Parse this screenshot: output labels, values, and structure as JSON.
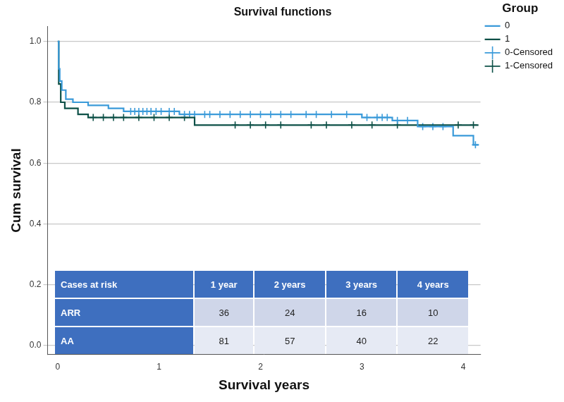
{
  "chart_data": {
    "type": "line",
    "title": "Survival functions",
    "x_label": "Survival years",
    "y_label": "Cum survival",
    "legend_title": "Group",
    "legend": "top-right",
    "grid": "y",
    "xlim": [
      -0.1,
      4.17
    ],
    "xticks": [
      0,
      1,
      2,
      3,
      4
    ],
    "ylim": [
      -0.03,
      1.05
    ],
    "yticks": [
      {
        "value": 0,
        "label": "0.0"
      },
      0.2,
      0.4,
      0.6,
      0.8,
      {
        "value": 1,
        "label": "1.0"
      }
    ],
    "series": [
      {
        "name": "0",
        "color": "#3a9ad9",
        "type": "line",
        "line_style": "step",
        "x": [
          0,
          0.01,
          0.02,
          0.04,
          0.08,
          0.15,
          0.3,
          0.5,
          0.65,
          1.2,
          3.0,
          3.3,
          3.55,
          3.9,
          4.1,
          4.15
        ],
        "values": [
          1,
          0.91,
          0.87,
          0.84,
          0.81,
          0.8,
          0.79,
          0.78,
          0.77,
          0.76,
          0.75,
          0.74,
          0.72,
          0.69,
          0.66,
          0.66
        ]
      },
      {
        "name": "1",
        "color": "#0d5047",
        "type": "line",
        "line_style": "step",
        "x": [
          0,
          0.01,
          0.03,
          0.07,
          0.2,
          0.3,
          1.35,
          4.15
        ],
        "values": [
          1,
          0.86,
          0.8,
          0.78,
          0.76,
          0.75,
          0.725,
          0.725
        ]
      },
      {
        "name": "0-Censored",
        "color": "#3a9ad9",
        "type": "scatter",
        "marker": "cross",
        "x": [
          0.72,
          0.76,
          0.8,
          0.84,
          0.88,
          0.92,
          0.97,
          1.02,
          1.1,
          1.15,
          1.25,
          1.3,
          1.35,
          1.45,
          1.5,
          1.6,
          1.7,
          1.8,
          1.9,
          2.0,
          2.1,
          2.2,
          2.3,
          2.45,
          2.55,
          2.7,
          2.85,
          3.05,
          3.15,
          3.2,
          3.25,
          3.35,
          3.45,
          3.6,
          3.7,
          3.8,
          4.12
        ],
        "values": [
          0.77,
          0.77,
          0.77,
          0.77,
          0.77,
          0.77,
          0.77,
          0.77,
          0.77,
          0.77,
          0.76,
          0.76,
          0.76,
          0.76,
          0.76,
          0.76,
          0.76,
          0.76,
          0.76,
          0.76,
          0.76,
          0.76,
          0.76,
          0.76,
          0.76,
          0.76,
          0.76,
          0.75,
          0.75,
          0.75,
          0.75,
          0.74,
          0.74,
          0.72,
          0.72,
          0.72,
          0.66
        ]
      },
      {
        "name": "1-Censored",
        "color": "#0d5047",
        "type": "scatter",
        "marker": "cross",
        "x": [
          0.35,
          0.45,
          0.55,
          0.65,
          0.8,
          0.95,
          1.1,
          1.25,
          1.75,
          1.9,
          2.05,
          2.2,
          2.5,
          2.65,
          2.9,
          3.1,
          3.35,
          3.95,
          4.1
        ],
        "values": [
          0.75,
          0.75,
          0.75,
          0.75,
          0.75,
          0.75,
          0.75,
          0.75,
          0.725,
          0.725,
          0.725,
          0.725,
          0.725,
          0.725,
          0.725,
          0.725,
          0.725,
          0.725,
          0.725
        ]
      }
    ]
  },
  "table": {
    "header": [
      "Cases at risk",
      "1 year",
      "2 years",
      "3 years",
      "4 years"
    ],
    "rows": [
      [
        "ARR",
        36,
        24,
        16,
        10
      ],
      [
        "AA",
        81,
        57,
        40,
        22
      ]
    ]
  }
}
